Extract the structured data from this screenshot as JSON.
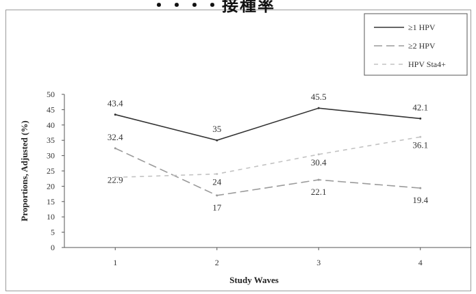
{
  "header": {
    "title": "・・・・接種率"
  },
  "chart_data": {
    "type": "line",
    "categories": [
      "1",
      "2",
      "3",
      "4"
    ],
    "xlabel": "Study Waves",
    "ylabel": "Proportions, Adjusted (%)",
    "ylim": [
      0,
      50
    ],
    "yticks": [
      "0",
      "5",
      "10",
      "15",
      "20",
      "25",
      "30",
      "35",
      "40",
      "45",
      "50"
    ],
    "grid": false,
    "legend_position": "top-right",
    "series": [
      {
        "name": "≥1 HPV",
        "values": [
          43.4,
          35,
          45.5,
          42.1
        ],
        "labels": [
          "43.4",
          "35",
          "45.5",
          "42.1"
        ],
        "color": "#333333",
        "dash": "solid"
      },
      {
        "name": "≥2 HPV",
        "values": [
          32.4,
          17,
          22.1,
          19.4
        ],
        "labels": [
          "32.4",
          "17",
          "22.1",
          "19.4"
        ],
        "color": "#9a9a9a",
        "dash": "long"
      },
      {
        "name": "HPV Sta4+",
        "values": [
          22.9,
          24,
          30.4,
          36.1
        ],
        "labels": [
          "22.9",
          "24",
          "30.4",
          "36.1"
        ],
        "color": "#c2c2c2",
        "dash": "short"
      }
    ]
  }
}
